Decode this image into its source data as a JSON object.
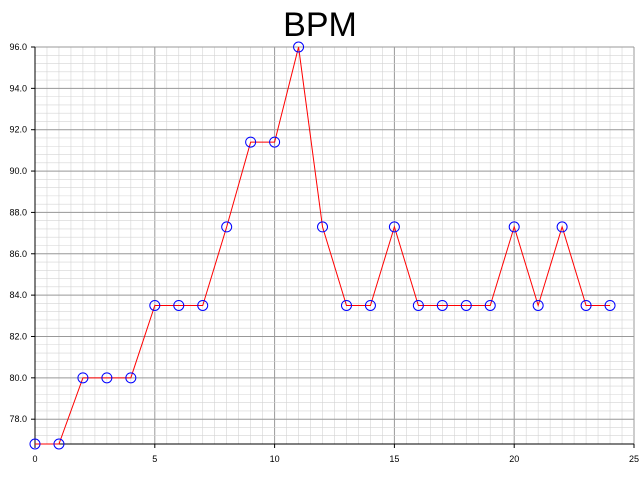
{
  "chart_data": {
    "type": "line",
    "title": "BPM",
    "xlabel": "",
    "ylabel": "",
    "xlim": [
      0,
      25
    ],
    "ylim": [
      76.8,
      96.0
    ],
    "x_ticks": [
      0,
      5,
      10,
      15,
      20,
      25
    ],
    "x_tick_labels": [
      "0",
      "5",
      "10",
      "15",
      "20",
      "25"
    ],
    "y_ticks": [
      78.0,
      80.0,
      82.0,
      84.0,
      86.0,
      88.0,
      90.0,
      92.0,
      94.0,
      96.0
    ],
    "y_tick_labels": [
      "78.0",
      "80.0",
      "82.0",
      "84.0",
      "86.0",
      "88.0",
      "90.0",
      "92.0",
      "94.0",
      "96.0"
    ],
    "grid": true,
    "line_color": "#ff0000",
    "marker_color": "#0000ff",
    "marker": "circle-open",
    "series": [
      {
        "x": [
          0,
          1,
          2,
          3,
          4,
          5,
          6,
          7,
          8,
          9,
          10,
          11,
          12,
          13,
          14,
          15,
          16,
          17,
          18,
          19,
          20,
          21,
          22,
          23,
          24
        ],
        "values": [
          76.8,
          76.8,
          80.0,
          80.0,
          80.0,
          83.5,
          83.5,
          83.5,
          87.3,
          91.4,
          91.4,
          96.0,
          87.3,
          83.5,
          83.5,
          87.3,
          83.5,
          83.5,
          83.5,
          83.5,
          87.3,
          83.5,
          87.3,
          83.5,
          83.5
        ]
      }
    ]
  }
}
